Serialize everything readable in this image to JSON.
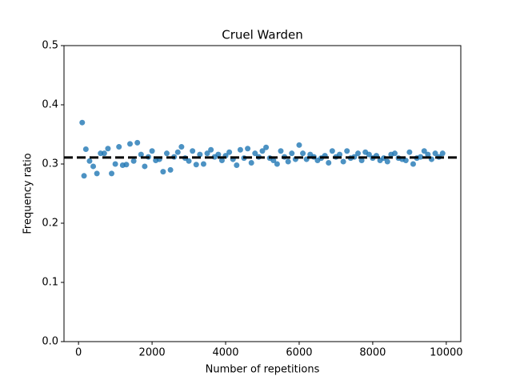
{
  "chart_data": {
    "type": "scatter",
    "title": "Cruel Warden",
    "x_label": "Number of repetitions",
    "y_label": "Frequency ratio",
    "xlim": [
      -395,
      10395
    ],
    "ylim": [
      0,
      0.5
    ],
    "xticks": [
      0,
      2000,
      4000,
      6000,
      8000,
      10000
    ],
    "yticks": [
      {
        "value": 0,
        "label": "0.0"
      },
      0.1,
      0.2,
      0.3,
      0.4,
      0.5
    ],
    "hline": 0.311,
    "hline_color": "#000000",
    "series": [
      {
        "color": "#1f77b4",
        "x": [
          100,
          150,
          200,
          300,
          400,
          500,
          600,
          700,
          800,
          900,
          1000,
          1100,
          1200,
          1300,
          1400,
          1500,
          1600,
          1700,
          1800,
          1900,
          2000,
          2100,
          2200,
          2300,
          2400,
          2500,
          2600,
          2700,
          2800,
          2900,
          3000,
          3100,
          3200,
          3300,
          3400,
          3500,
          3600,
          3700,
          3800,
          3900,
          4000,
          4100,
          4200,
          4300,
          4400,
          4500,
          4600,
          4700,
          4800,
          4900,
          5000,
          5100,
          5200,
          5300,
          5400,
          5500,
          5600,
          5700,
          5800,
          5900,
          6000,
          6100,
          6200,
          6300,
          6400,
          6500,
          6600,
          6700,
          6800,
          6900,
          7000,
          7100,
          7200,
          7300,
          7400,
          7500,
          7600,
          7700,
          7800,
          7900,
          8000,
          8100,
          8200,
          8300,
          8400,
          8500,
          8600,
          8700,
          8800,
          8900,
          9000,
          9100,
          9200,
          9300,
          9400,
          9500,
          9600,
          9700,
          9800,
          9900
        ],
        "values": [
          0.37,
          0.28,
          0.325,
          0.305,
          0.296,
          0.284,
          0.318,
          0.318,
          0.326,
          0.284,
          0.3,
          0.329,
          0.298,
          0.299,
          0.334,
          0.305,
          0.336,
          0.316,
          0.296,
          0.312,
          0.322,
          0.306,
          0.308,
          0.287,
          0.318,
          0.29,
          0.312,
          0.32,
          0.329,
          0.31,
          0.305,
          0.322,
          0.299,
          0.316,
          0.3,
          0.318,
          0.324,
          0.312,
          0.316,
          0.306,
          0.314,
          0.32,
          0.308,
          0.298,
          0.324,
          0.31,
          0.326,
          0.302,
          0.318,
          0.312,
          0.322,
          0.328,
          0.31,
          0.306,
          0.3,
          0.322,
          0.312,
          0.304,
          0.318,
          0.308,
          0.332,
          0.318,
          0.308,
          0.316,
          0.312,
          0.306,
          0.31,
          0.314,
          0.302,
          0.322,
          0.312,
          0.316,
          0.304,
          0.322,
          0.31,
          0.312,
          0.318,
          0.306,
          0.32,
          0.316,
          0.31,
          0.314,
          0.306,
          0.31,
          0.304,
          0.316,
          0.318,
          0.31,
          0.308,
          0.306,
          0.32,
          0.3,
          0.31,
          0.312,
          0.322,
          0.316,
          0.308,
          0.318,
          0.312,
          0.318
        ]
      }
    ]
  }
}
